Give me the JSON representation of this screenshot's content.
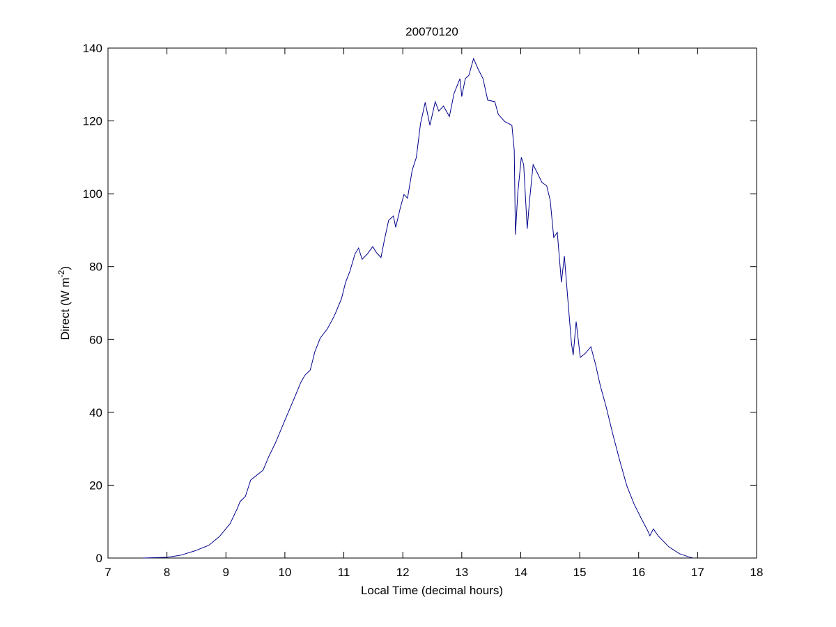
{
  "chart_data": {
    "type": "line",
    "title": "20070120",
    "xlabel": "Local Time (decimal hours)",
    "ylabel": [
      "Direct (W m",
      "-2",
      ")"
    ],
    "xlim": [
      7,
      18
    ],
    "xticks": [
      7,
      8,
      9,
      10,
      11,
      12,
      13,
      14,
      15,
      16,
      17,
      18
    ],
    "ylim": [
      0,
      140
    ],
    "yticks": [
      0,
      20,
      40,
      60,
      80,
      100,
      120,
      140
    ],
    "grid": false,
    "series": [
      {
        "color": "#00008b",
        "x": [
          7.59,
          8.0,
          8.24,
          8.48,
          8.71,
          8.89,
          9.07,
          9.19,
          9.24,
          9.33,
          9.42,
          9.52,
          9.63,
          9.72,
          9.84,
          10.01,
          10.15,
          10.27,
          10.34,
          10.43,
          10.51,
          10.6,
          10.72,
          10.82,
          10.86,
          10.96,
          11.03,
          11.1,
          11.19,
          11.25,
          11.31,
          11.4,
          11.49,
          11.55,
          11.63,
          11.69,
          11.76,
          11.84,
          11.88,
          11.96,
          12.02,
          12.08,
          12.16,
          12.23,
          12.3,
          12.38,
          12.46,
          12.55,
          12.61,
          12.69,
          12.79,
          12.87,
          12.97,
          13.0,
          13.06,
          13.12,
          13.2,
          13.27,
          13.36,
          13.44,
          13.56,
          13.62,
          13.73,
          13.85,
          13.89,
          13.91,
          13.95,
          14.01,
          14.05,
          14.11,
          14.15,
          14.21,
          14.27,
          14.36,
          14.44,
          14.5,
          14.56,
          14.62,
          14.69,
          14.74,
          14.8,
          14.86,
          14.89,
          14.94,
          15.01,
          15.09,
          15.19,
          15.27,
          15.35,
          15.45,
          15.57,
          15.68,
          15.8,
          15.92,
          16.04,
          16.16,
          16.19,
          16.25,
          16.33,
          16.51,
          16.69,
          16.87,
          16.92
        ],
        "values": [
          0,
          0.2,
          0.8,
          2.0,
          3.5,
          5.9,
          9.4,
          13.5,
          15.5,
          16.9,
          21.4,
          22.7,
          24.1,
          27.6,
          31.6,
          38.2,
          43.5,
          48.2,
          50.2,
          51.6,
          56.7,
          60.4,
          62.9,
          65.9,
          67.3,
          71.2,
          75.7,
          78.6,
          83.5,
          85.1,
          82.0,
          83.5,
          85.5,
          83.9,
          82.5,
          87.5,
          92.7,
          93.9,
          90.8,
          96.3,
          99.8,
          98.8,
          106.5,
          110.0,
          119.2,
          125.1,
          118.8,
          125.3,
          122.7,
          124.1,
          121.2,
          127.6,
          131.6,
          126.7,
          131.6,
          132.5,
          137.1,
          134.5,
          131.6,
          125.7,
          125.3,
          121.8,
          119.8,
          118.8,
          112.0,
          88.8,
          100.2,
          110.0,
          108.0,
          90.4,
          98.2,
          108.0,
          106.1,
          103.1,
          102.2,
          98.2,
          88.0,
          89.4,
          75.7,
          82.9,
          70.8,
          59.0,
          55.7,
          64.9,
          55.1,
          56.1,
          58.0,
          53.1,
          47.3,
          41.4,
          33.5,
          26.7,
          19.8,
          14.9,
          11.0,
          7.3,
          6.1,
          8.0,
          6.1,
          3.1,
          1.2,
          0.2,
          0
        ]
      }
    ]
  }
}
